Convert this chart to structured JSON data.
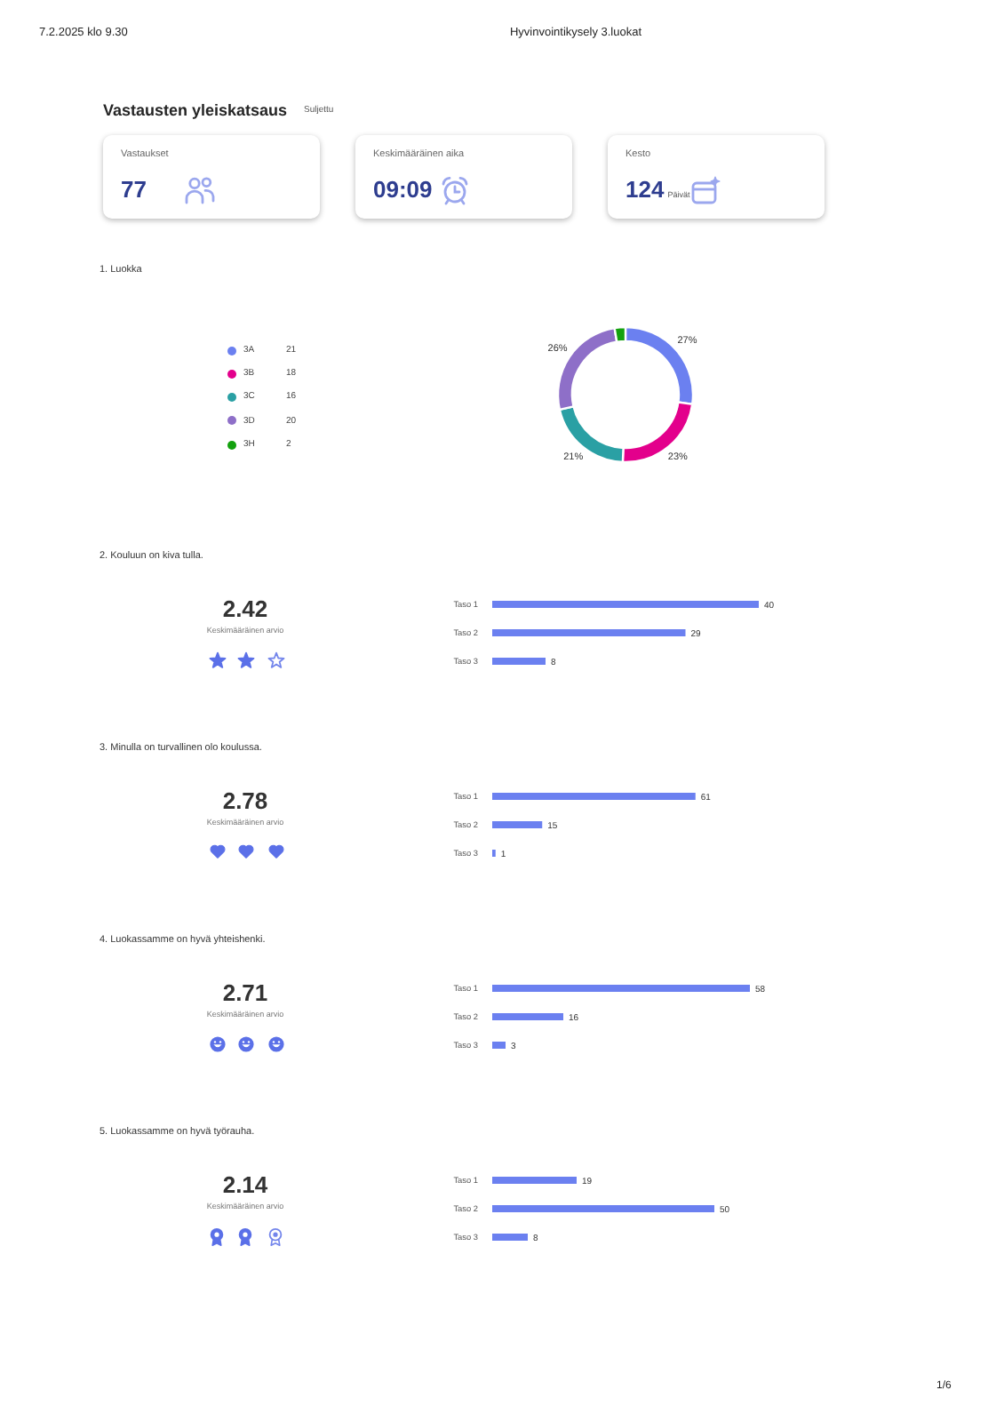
{
  "chart_data": [
    {
      "type": "other",
      "title": "Vastausten yleiskatsaus",
      "subtitle": "Suljettu",
      "annotations": [
        "7.2.2025 klo 9.30",
        "Hyvinvointikysely 3.luokat",
        "Vastaukset",
        "77",
        "Keskimääräinen aika",
        "09:09",
        "Kesto",
        "124",
        "Päivät"
      ]
    },
    {
      "type": "donut",
      "title": "1. Luokka",
      "categories": [
        "3A",
        "3B",
        "3C",
        "3D",
        "3H"
      ],
      "values": [
        21,
        18,
        16,
        20,
        2
      ],
      "colors": [
        "#6b80f0",
        "#e3008c",
        "#2aa0a4",
        "#8e6fc8",
        "#13a10e"
      ],
      "value_labels": [
        "21",
        "18",
        "16",
        "20",
        "2"
      ],
      "legend": "left",
      "annotations": [
        {
          "text": "27%",
          "x": "3A"
        },
        {
          "text": "23%",
          "x": "3B"
        },
        {
          "text": "21%",
          "x": "3C"
        },
        {
          "text": "26%",
          "x": "3D"
        }
      ]
    },
    {
      "type": "other",
      "title": "2. Kouluun on kiva tulla.",
      "annotations": [
        "2.42",
        "Keskimääräinen arvio"
      ]
    },
    {
      "type": "bar",
      "orientation": "horizontal",
      "categories": [
        "Taso 1",
        "Taso 2",
        "Taso 3"
      ],
      "values": [
        40,
        29,
        8
      ],
      "color": "#6b80f0",
      "data_labels": true
    },
    {
      "type": "other",
      "title": "3. Minulla on turvallinen olo koulussa.",
      "annotations": [
        "2.78",
        "Keskimääräinen arvio"
      ]
    },
    {
      "type": "bar",
      "orientation": "horizontal",
      "categories": [
        "Taso 1",
        "Taso 2",
        "Taso 3"
      ],
      "values": [
        61,
        15,
        1
      ],
      "color": "#6b80f0",
      "data_labels": true
    },
    {
      "type": "other",
      "title": "4. Luokassamme on hyvä yhteishenki.",
      "annotations": [
        "2.71",
        "Keskimääräinen arvio"
      ]
    },
    {
      "type": "bar",
      "orientation": "horizontal",
      "categories": [
        "Taso 1",
        "Taso 2",
        "Taso 3"
      ],
      "values": [
        58,
        16,
        3
      ],
      "color": "#6b80f0",
      "data_labels": true
    },
    {
      "type": "other",
      "title": "5. Luokassamme on hyvä työrauha.",
      "annotations": [
        "2.14",
        "Keskimääräinen arvio"
      ]
    },
    {
      "type": "bar",
      "orientation": "horizontal",
      "categories": [
        "Taso 1",
        "Taso 2",
        "Taso 3"
      ],
      "values": [
        19,
        50,
        8
      ],
      "color": "#6b80f0",
      "data_labels": true,
      "annotations": [
        "1/6"
      ]
    }
  ]
}
